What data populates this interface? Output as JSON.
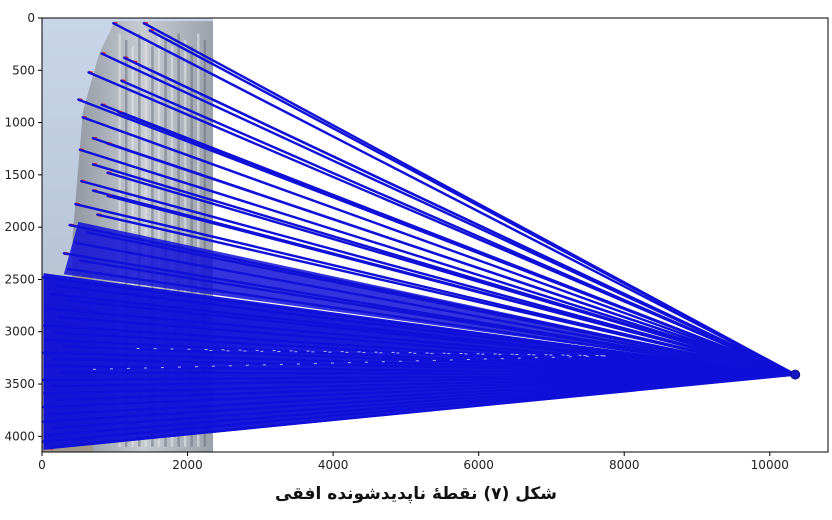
{
  "chart_data": {
    "type": "line",
    "title": "",
    "xlabel": "",
    "ylabel": "",
    "xlim": [
      0,
      10800
    ],
    "ylim": [
      4150,
      0
    ],
    "y_inverted": true,
    "grid": false,
    "x_ticks": [
      {
        "value": 0,
        "label": "0"
      },
      {
        "value": 2000,
        "label": "2000"
      },
      {
        "value": 4000,
        "label": "4000"
      },
      {
        "value": 6000,
        "label": "6000"
      },
      {
        "value": 8000,
        "label": "8000"
      },
      {
        "value": 10000,
        "label": "10000"
      }
    ],
    "y_ticks": [
      {
        "value": 0,
        "label": "0"
      },
      {
        "value": 500,
        "label": "500"
      },
      {
        "value": 1000,
        "label": "1000"
      },
      {
        "value": 1500,
        "label": "1500"
      },
      {
        "value": 2000,
        "label": "2000"
      },
      {
        "value": 2500,
        "label": "2500"
      },
      {
        "value": 3000,
        "label": "3000"
      },
      {
        "value": 3500,
        "label": "3500"
      },
      {
        "value": 4000,
        "label": "4000"
      }
    ],
    "background_photo": {
      "description_type": "building facade photo",
      "x_range": [
        0,
        2350
      ],
      "y_range": [
        0,
        4150
      ]
    },
    "vanishing_point": {
      "x": 10350,
      "y": 3410
    },
    "line_color": "#1010d8",
    "edge_color": "#e02020",
    "lines": [
      {
        "x": 980,
        "y": 50
      },
      {
        "x": 1400,
        "y": 50
      },
      {
        "x": 1480,
        "y": 120
      },
      {
        "x": 820,
        "y": 340
      },
      {
        "x": 1130,
        "y": 380
      },
      {
        "x": 1250,
        "y": 420
      },
      {
        "x": 640,
        "y": 520
      },
      {
        "x": 1090,
        "y": 600
      },
      {
        "x": 500,
        "y": 780
      },
      {
        "x": 820,
        "y": 830
      },
      {
        "x": 1050,
        "y": 900
      },
      {
        "x": 560,
        "y": 950
      },
      {
        "x": 700,
        "y": 1150
      },
      {
        "x": 900,
        "y": 1200
      },
      {
        "x": 520,
        "y": 1260
      },
      {
        "x": 700,
        "y": 1400
      },
      {
        "x": 900,
        "y": 1480
      },
      {
        "x": 540,
        "y": 1560
      },
      {
        "x": 700,
        "y": 1650
      },
      {
        "x": 900,
        "y": 1700
      },
      {
        "x": 460,
        "y": 1780
      },
      {
        "x": 760,
        "y": 1880
      },
      {
        "x": 380,
        "y": 1980
      },
      {
        "x": 620,
        "y": 2050
      },
      {
        "x": 460,
        "y": 2150
      },
      {
        "x": 300,
        "y": 2250
      },
      {
        "x": 520,
        "y": 2320
      },
      {
        "x": 360,
        "y": 2400
      },
      {
        "x": 20,
        "y": 2480
      },
      {
        "x": 200,
        "y": 2560
      },
      {
        "x": 120,
        "y": 2640
      },
      {
        "x": 340,
        "y": 2700
      },
      {
        "x": 80,
        "y": 2780
      },
      {
        "x": 240,
        "y": 2860
      },
      {
        "x": 30,
        "y": 2940
      },
      {
        "x": 180,
        "y": 3010
      },
      {
        "x": 60,
        "y": 3080
      },
      {
        "x": 300,
        "y": 3140
      },
      {
        "x": 20,
        "y": 3200
      },
      {
        "x": 150,
        "y": 3260
      },
      {
        "x": 40,
        "y": 3330
      },
      {
        "x": 260,
        "y": 3390
      },
      {
        "x": 20,
        "y": 3460
      },
      {
        "x": 120,
        "y": 3520
      },
      {
        "x": 30,
        "y": 3590
      },
      {
        "x": 200,
        "y": 3650
      },
      {
        "x": 20,
        "y": 3720
      },
      {
        "x": 90,
        "y": 3790
      },
      {
        "x": 20,
        "y": 3860
      },
      {
        "x": 160,
        "y": 3920
      },
      {
        "x": 40,
        "y": 3990
      },
      {
        "x": 20,
        "y": 4050
      },
      {
        "x": 100,
        "y": 4110
      }
    ]
  },
  "caption": "شکل (۷) نقطهٔ ناپدیدشونده افقی"
}
